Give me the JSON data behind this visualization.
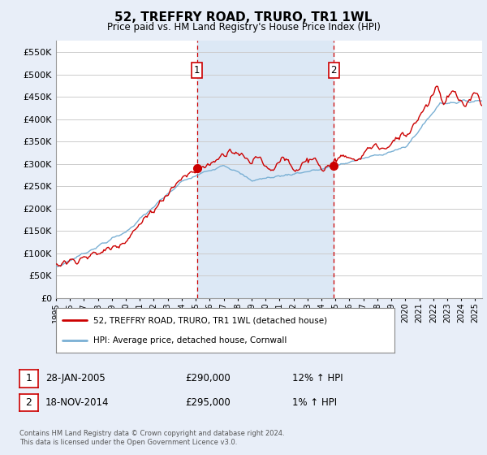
{
  "title": "52, TREFFRY ROAD, TRURO, TR1 1WL",
  "subtitle": "Price paid vs. HM Land Registry's House Price Index (HPI)",
  "title_fontsize": 11,
  "subtitle_fontsize": 9,
  "ylabel_ticks": [
    "£0",
    "£50K",
    "£100K",
    "£150K",
    "£200K",
    "£250K",
    "£300K",
    "£350K",
    "£400K",
    "£450K",
    "£500K",
    "£550K"
  ],
  "ytick_values": [
    0,
    50000,
    100000,
    150000,
    200000,
    250000,
    300000,
    350000,
    400000,
    450000,
    500000,
    550000
  ],
  "ylim": [
    0,
    575000
  ],
  "xlim_start": 1995.0,
  "xlim_end": 2025.5,
  "bg_color": "#e8eef8",
  "plot_bg_color": "#ffffff",
  "grid_color": "#cccccc",
  "red_line_color": "#cc0000",
  "blue_line_color": "#7ab0d4",
  "sale1_x": 2005.08,
  "sale1_y": 290000,
  "sale1_label": "1",
  "sale1_date": "28-JAN-2005",
  "sale1_price": "£290,000",
  "sale1_hpi": "12% ↑ HPI",
  "sale2_x": 2014.89,
  "sale2_y": 295000,
  "sale2_label": "2",
  "sale2_date": "18-NOV-2014",
  "sale2_price": "£295,000",
  "sale2_hpi": "1% ↑ HPI",
  "vline_color": "#cc0000",
  "shade_color": "#dce8f5",
  "legend_label1": "52, TREFFRY ROAD, TRURO, TR1 1WL (detached house)",
  "legend_label2": "HPI: Average price, detached house, Cornwall",
  "footer": "Contains HM Land Registry data © Crown copyright and database right 2024.\nThis data is licensed under the Open Government Licence v3.0.",
  "xticklabels": [
    "1995",
    "1996",
    "1997",
    "1998",
    "1999",
    "2000",
    "2001",
    "2002",
    "2003",
    "2004",
    "2005",
    "2006",
    "2007",
    "2008",
    "2009",
    "2010",
    "2011",
    "2012",
    "2013",
    "2014",
    "2015",
    "2016",
    "2017",
    "2018",
    "2019",
    "2020",
    "2021",
    "2022",
    "2023",
    "2024",
    "2025"
  ]
}
